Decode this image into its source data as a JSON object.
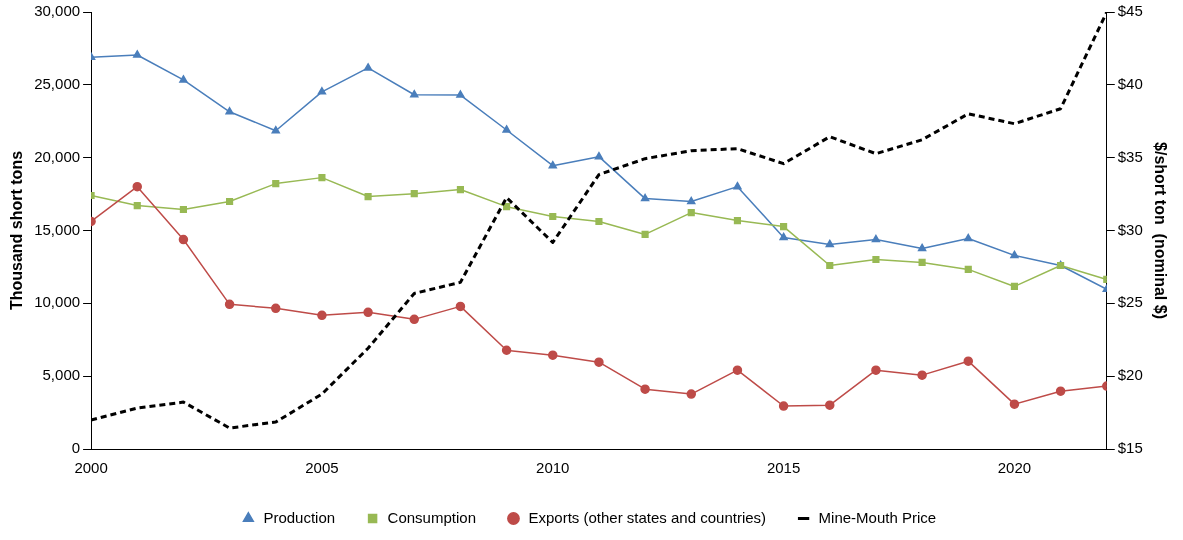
{
  "chart_data": {
    "type": "line",
    "ylabel": "Thousand short tons",
    "y2label": "$/short ton  (nominal $)",
    "x": [
      2000,
      2001,
      2002,
      2003,
      2004,
      2005,
      2006,
      2007,
      2008,
      2009,
      2010,
      2011,
      2012,
      2013,
      2014,
      2015,
      2016,
      2017,
      2018,
      2019,
      2020,
      2021,
      2022
    ],
    "xlim": [
      2000,
      2022
    ],
    "xticks": [
      2000,
      2005,
      2010,
      2015,
      2020
    ],
    "ylim": [
      0,
      30000
    ],
    "yticks": [
      0,
      {
        "value": 5000,
        "label": "5,000"
      },
      {
        "value": 10000,
        "label": "10,000"
      },
      {
        "value": 15000,
        "label": "15,000"
      },
      {
        "value": 20000,
        "label": "20,000"
      },
      {
        "value": 25000,
        "label": "25,000"
      },
      {
        "value": 30000,
        "label": "30,000"
      }
    ],
    "y2lim": [
      15,
      45
    ],
    "y2ticks": [
      {
        "value": 15,
        "label": "$15"
      },
      {
        "value": 20,
        "label": "$20"
      },
      {
        "value": 25,
        "label": "$25"
      },
      {
        "value": 30,
        "label": "$30"
      },
      {
        "value": 35,
        "label": "$35"
      },
      {
        "value": 40,
        "label": "$40"
      },
      {
        "value": 45,
        "label": "$45"
      }
    ],
    "grid": false,
    "legend": "bottom",
    "series": [
      {
        "name": "Production",
        "color": "#4a7ebb",
        "marker": "triangle",
        "line_style": "solid",
        "values": [
          26900,
          27050,
          25340,
          23150,
          21850,
          24520,
          26160,
          24320,
          24300,
          21900,
          19450,
          20070,
          17190,
          16990,
          18010,
          14520,
          14040,
          14380,
          13770,
          14450,
          13290,
          12600,
          10960
        ]
      },
      {
        "name": "Consumption",
        "color": "#98b954",
        "marker": "square",
        "line_style": "solid",
        "values": [
          17400,
          16710,
          16440,
          16990,
          18220,
          18630,
          17330,
          17530,
          17810,
          16640,
          15960,
          15620,
          14730,
          16230,
          15680,
          15270,
          12600,
          13010,
          12810,
          12330,
          11160,
          12600,
          11640
        ]
      },
      {
        "name": "Exports (other states and countries)",
        "color": "#be4b48",
        "marker": "circle",
        "line_style": "solid",
        "values": [
          15620,
          18010,
          14380,
          9930,
          9660,
          9180,
          9380,
          8900,
          9790,
          6780,
          6440,
          5960,
          4110,
          3770,
          5410,
          2950,
          3010,
          5410,
          5070,
          6030,
          3080,
          3970,
          4320
        ]
      },
      {
        "name": "Mine-Mouth Price",
        "color": "#000000",
        "marker": "none",
        "line_style": "dashed",
        "axis": "y2",
        "values": [
          16.99,
          17.81,
          18.22,
          16.44,
          16.85,
          18.77,
          21.92,
          25.68,
          26.44,
          32.26,
          29.18,
          33.84,
          34.93,
          35.48,
          35.62,
          34.59,
          36.44,
          35.27,
          36.23,
          38.01,
          37.33,
          38.36,
          45.0
        ]
      }
    ]
  }
}
